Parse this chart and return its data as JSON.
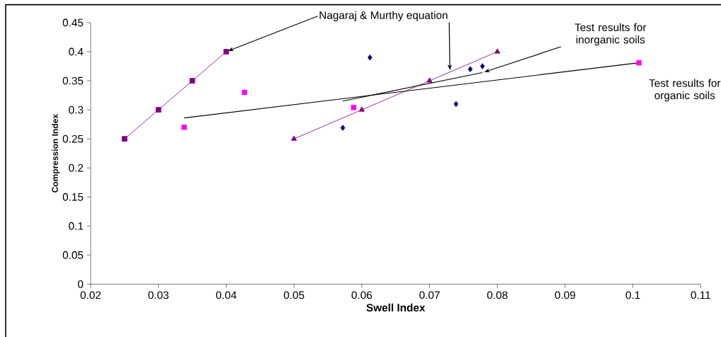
{
  "chart_data": {
    "type": "scatter",
    "xlabel": "Swell Index",
    "ylabel": "Compression Index",
    "xlim": [
      0.02,
      0.11
    ],
    "ylim": [
      0,
      0.45
    ],
    "xticks": [
      0.02,
      0.03,
      0.04,
      0.05,
      0.06,
      0.07,
      0.08,
      0.09,
      0.1,
      0.11
    ],
    "yticks": [
      0,
      0.05,
      0.1,
      0.15,
      0.2,
      0.25,
      0.3,
      0.35,
      0.4,
      0.45
    ],
    "series": [
      {
        "type": "line",
        "color": "#800080",
        "marker": "square",
        "x": [
          0.025,
          0.03,
          0.035,
          0.04
        ],
        "values": [
          0.25,
          0.3,
          0.35,
          0.4
        ]
      },
      {
        "type": "line",
        "color": "#800080",
        "marker": "triangle",
        "x": [
          0.05,
          0.06,
          0.07,
          0.08
        ],
        "values": [
          0.25,
          0.3,
          0.35,
          0.4
        ]
      },
      {
        "color": "#000080",
        "marker": "diamond",
        "x": [
          0.0572,
          0.0612,
          0.0739,
          0.076,
          0.0778
        ],
        "values": [
          0.269,
          0.39,
          0.31,
          0.37,
          0.375
        ]
      },
      {
        "color": "#ff00ff",
        "marker": "square",
        "x": [
          0.0338,
          0.0427,
          0.0588,
          0.1009
        ],
        "values": [
          0.27,
          0.33,
          0.304,
          0.381
        ]
      },
      {
        "type": "line",
        "color": "#000000",
        "marker": "none",
        "x": [
          0.0338,
          0.1009
        ],
        "values": [
          0.286,
          0.381
        ]
      },
      {
        "type": "line",
        "color": "#000000",
        "marker": "none",
        "x": [
          0.0572,
          0.0778
        ],
        "values": [
          0.315,
          0.364
        ]
      }
    ],
    "annotations": [
      {
        "text": "Nagaraj & Murthy equation",
        "x": 0.04,
        "y": 0.4
      },
      {
        "text": "Test results for inorganic soils",
        "x": 0.0778,
        "y": 0.364
      },
      {
        "text": "Test results for organic soils",
        "x": 0.1009,
        "y": 0.381
      }
    ]
  }
}
